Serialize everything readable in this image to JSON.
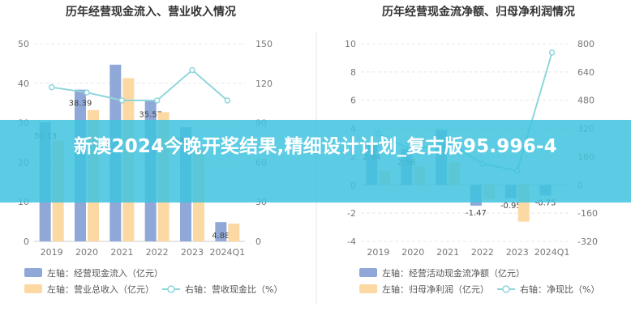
{
  "chart_data": [
    {
      "type": "bar",
      "title": "历年经营现金流入、营业收入情况",
      "categories": [
        "2019",
        "2020",
        "2021",
        "2022",
        "2023",
        "2024Q1"
      ],
      "left_axis": {
        "ylim": [
          0,
          50
        ],
        "ticks": [
          "0",
          "10",
          "20",
          "30",
          "40",
          "50"
        ]
      },
      "right_axis": {
        "ylim": [
          0,
          150
        ],
        "ticks": [
          "0",
          "30",
          "60",
          "90",
          "120",
          "150"
        ]
      },
      "series": [
        {
          "name": "左轴：经营现金流入（亿元）",
          "axis": "left",
          "color": "#8fa8d8",
          "values": [
            30.13,
            38.39,
            44.7,
            35.57,
            28.86,
            4.88
          ],
          "labels": [
            "30.13",
            "38.39",
            "",
            "35.57",
            "28.86",
            "4.88"
          ]
        },
        {
          "name": "左轴：营业总收入（亿元）",
          "axis": "left",
          "color": "#fcd9a3",
          "values": [
            25.5,
            33.2,
            41.3,
            32.7,
            23.5,
            4.5
          ],
          "labels": [
            "",
            "",
            "",
            "",
            "",
            ""
          ]
        },
        {
          "name": "右轴：营收现金比（%）",
          "axis": "right",
          "type": "line",
          "color": "#8fd6dc",
          "values": [
            117,
            113,
            107,
            107,
            130,
            107
          ]
        }
      ]
    },
    {
      "type": "bar",
      "title": "历年经营现金流净额、归母净利润情况",
      "categories": [
        "2019",
        "2020",
        "2021",
        "2022",
        "2023",
        "2024Q1"
      ],
      "left_axis": {
        "ylim": [
          -4,
          10
        ],
        "ticks": [
          "-4",
          "-2",
          "0",
          "2",
          "4",
          "6",
          "8",
          "10"
        ]
      },
      "right_axis": {
        "ylim": [
          -320,
          800
        ],
        "ticks": [
          "-320",
          "-160",
          "0",
          "160",
          "320",
          "480",
          "640",
          "800"
        ]
      },
      "series": [
        {
          "name": "左轴：经营活动现金流净额（亿元）",
          "axis": "left",
          "color": "#8fa8d8",
          "values": [
            2.94,
            2.56,
            3.9,
            -1.47,
            -0.95,
            -0.75
          ],
          "labels": [
            "2.94",
            "2.56",
            "",
            "-1.47",
            "-0.95",
            "-0.75"
          ]
        },
        {
          "name": "左轴：归母净利润（亿元）",
          "axis": "left",
          "color": "#fcd9a3",
          "values": [
            1.0,
            1.3,
            1.6,
            -1.0,
            -2.6,
            0
          ],
          "labels": [
            "",
            "",
            "",
            "",
            "",
            ""
          ]
        },
        {
          "name": "右轴：净现比（%）",
          "axis": "right",
          "type": "line",
          "color": "#8fd6dc",
          "values": [
            290,
            195,
            245,
            120,
            80,
            750
          ]
        }
      ]
    }
  ],
  "overlay": {
    "text": "新澳2024今晚开奖结果,精细设计计划_复古版95.996-4"
  }
}
